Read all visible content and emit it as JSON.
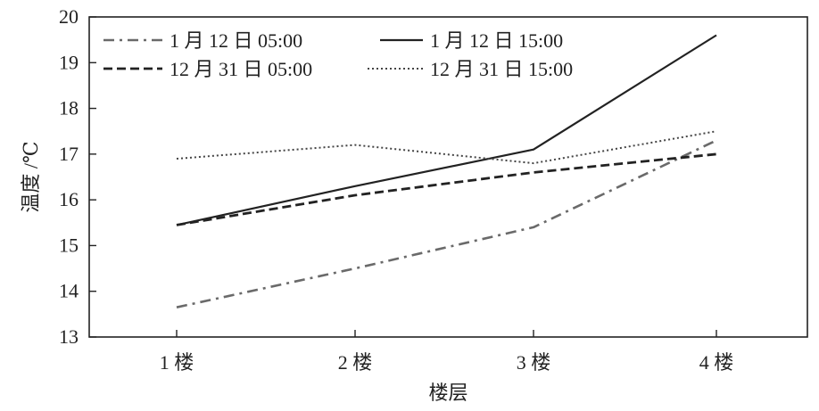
{
  "chart_data": {
    "type": "line",
    "categories": [
      "1 楼",
      "2 楼",
      "3 楼",
      "4 楼"
    ],
    "xlabel": "楼层",
    "ylabel": "温度 /℃",
    "ylim": [
      13,
      20
    ],
    "yticks": [
      13,
      14,
      15,
      16,
      17,
      18,
      19,
      20
    ],
    "grid": false,
    "legend_position": "top-left",
    "series": [
      {
        "name": "1 月 12 日 05:00",
        "values": [
          13.65,
          14.5,
          15.4,
          17.3
        ],
        "style": "dashdot",
        "color": "#6a6a6a"
      },
      {
        "name": "1 月 12 日 15:00",
        "values": [
          15.45,
          16.3,
          17.1,
          19.6
        ],
        "style": "solid",
        "color": "#222222"
      },
      {
        "name": "12 月 31 日 05:00",
        "values": [
          15.45,
          16.1,
          16.6,
          17.0
        ],
        "style": "dashed",
        "color": "#222222"
      },
      {
        "name": "12 月 31 日 15:00",
        "values": [
          16.9,
          17.2,
          16.8,
          17.5
        ],
        "style": "dotted",
        "color": "#444444"
      }
    ]
  }
}
